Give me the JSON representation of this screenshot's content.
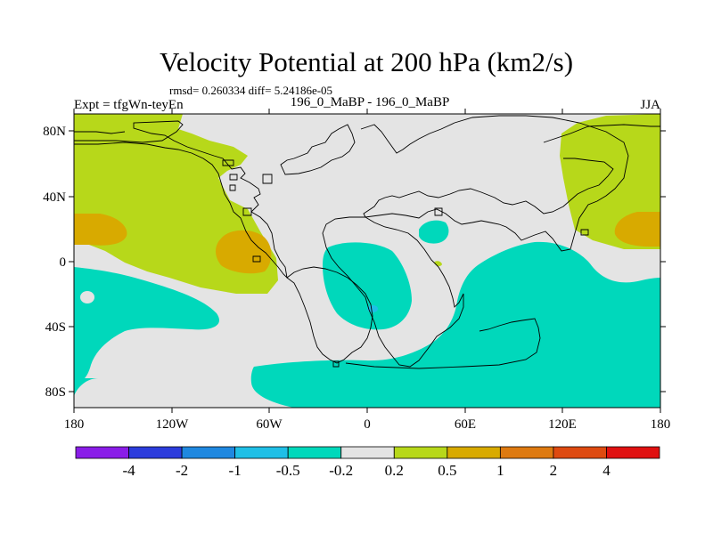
{
  "title": "Velocity Potential at 200 hPa (km2/s)",
  "stats": "rmsd= 0.260334 diff= 5.24186e-05",
  "expt": "Expt = tfgWn-teyEn",
  "case": "196_0_MaBP - 196_0_MaBP",
  "season": "JJA",
  "x_ticks": [
    "180",
    "120W",
    "60W",
    "0",
    "60E",
    "120E",
    "180"
  ],
  "y_ticks": [
    "80N",
    "40N",
    "0",
    "40S",
    "80S"
  ],
  "colorbar": {
    "colors": [
      "#8a1de8",
      "#2c3cdc",
      "#1f88e0",
      "#1fbfe6",
      "#00d8bb",
      "#e4e4e4",
      "#b7d81a",
      "#d8aa00",
      "#de7a10",
      "#de4a10",
      "#e01010"
    ],
    "labels": [
      "-4",
      "-2",
      "-1",
      "-0.5",
      "-0.2",
      "0.2",
      "0.5",
      "1",
      "2",
      "4"
    ]
  }
}
